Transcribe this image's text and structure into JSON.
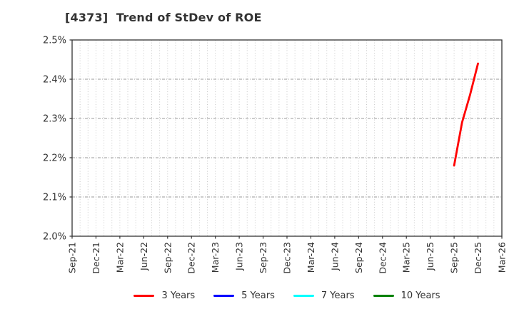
{
  "figure": {
    "background": "#ffffff"
  },
  "chart_data": {
    "type": "line",
    "title": "[4373]  Trend of StDev of ROE",
    "xlabel": "",
    "ylabel": "",
    "y_unit": "%",
    "ylim": [
      2.0,
      2.5
    ],
    "y_ticks": [
      {
        "value": 2.0,
        "label": "2.0%"
      },
      {
        "value": 2.1,
        "label": "2.1%"
      },
      {
        "value": 2.2,
        "label": "2.2%"
      },
      {
        "value": 2.3,
        "label": "2.3%"
      },
      {
        "value": 2.4,
        "label": "2.4%"
      },
      {
        "value": 2.5,
        "label": "2.5%"
      }
    ],
    "x_tick_labels": [
      "Sep-21",
      "Dec-21",
      "Mar-22",
      "Jun-22",
      "Sep-22",
      "Dec-22",
      "Mar-23",
      "Jun-23",
      "Sep-23",
      "Dec-23",
      "Mar-24",
      "Jun-24",
      "Sep-24",
      "Dec-24",
      "Mar-25",
      "Jun-25",
      "Sep-25",
      "Dec-25",
      "Mar-26"
    ],
    "x_tick_interval_months": 3,
    "x_total_months": 54,
    "grid": {
      "vertical": "monthly dotted",
      "horizontal": "every 0.1% dash-dot",
      "visible": true
    },
    "legend_position": "bottom-center",
    "series": [
      {
        "name": "3 Years",
        "color": "#ff0000",
        "points": [
          {
            "label": "Sep-25",
            "month_index": 48,
            "value": 2.18
          },
          {
            "label": "Oct-25",
            "month_index": 49,
            "value": 2.29
          },
          {
            "label": "Nov-25",
            "month_index": 50,
            "value": 2.36
          },
          {
            "label": "Dec-25",
            "month_index": 51,
            "value": 2.44
          }
        ]
      },
      {
        "name": "5 Years",
        "color": "#0000ff",
        "points": []
      },
      {
        "name": "7 Years",
        "color": "#00ffff",
        "points": []
      },
      {
        "name": "10 Years",
        "color": "#008000",
        "points": []
      }
    ]
  },
  "legend": {
    "items": [
      {
        "label": "3 Years",
        "color": "#ff0000"
      },
      {
        "label": "5 Years",
        "color": "#0000ff"
      },
      {
        "label": "7 Years",
        "color": "#00ffff"
      },
      {
        "label": "10 Years",
        "color": "#008000"
      }
    ]
  },
  "colors": {
    "title_text": "#333333",
    "tick_text": "#333333",
    "axis_frame": "#333333",
    "grid_vertical": "#c8c8c8",
    "grid_horizontal": "#999999"
  }
}
